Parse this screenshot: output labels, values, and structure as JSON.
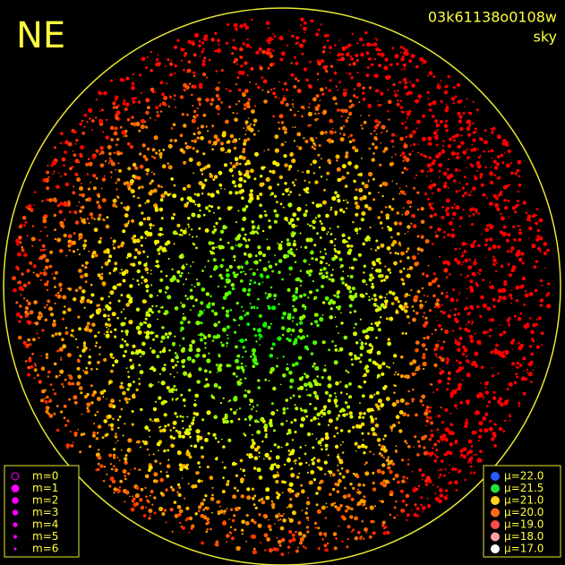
{
  "header": {
    "direction": "NE",
    "frame": "03k61138o0108w",
    "mode": "sky"
  },
  "legend_magnitude": {
    "color": "#ff00ff",
    "items": [
      "m=0",
      "m=1",
      "m=2",
      "m=3",
      "m=4",
      "m=5",
      "m=6"
    ]
  },
  "legend_brightness": {
    "items": [
      {
        "label": "μ=22.0",
        "color": "#2a5cff"
      },
      {
        "label": "μ=21.5",
        "color": "#22e03a"
      },
      {
        "label": "μ=21.0",
        "color": "#ffd21c"
      },
      {
        "label": "μ=20.0",
        "color": "#ff6a1a"
      },
      {
        "label": "μ=19.0",
        "color": "#ff4a4a"
      },
      {
        "label": "μ=18.0",
        "color": "#ffa0a0"
      },
      {
        "label": "μ=17.0",
        "color": "#ffffff"
      }
    ]
  }
}
